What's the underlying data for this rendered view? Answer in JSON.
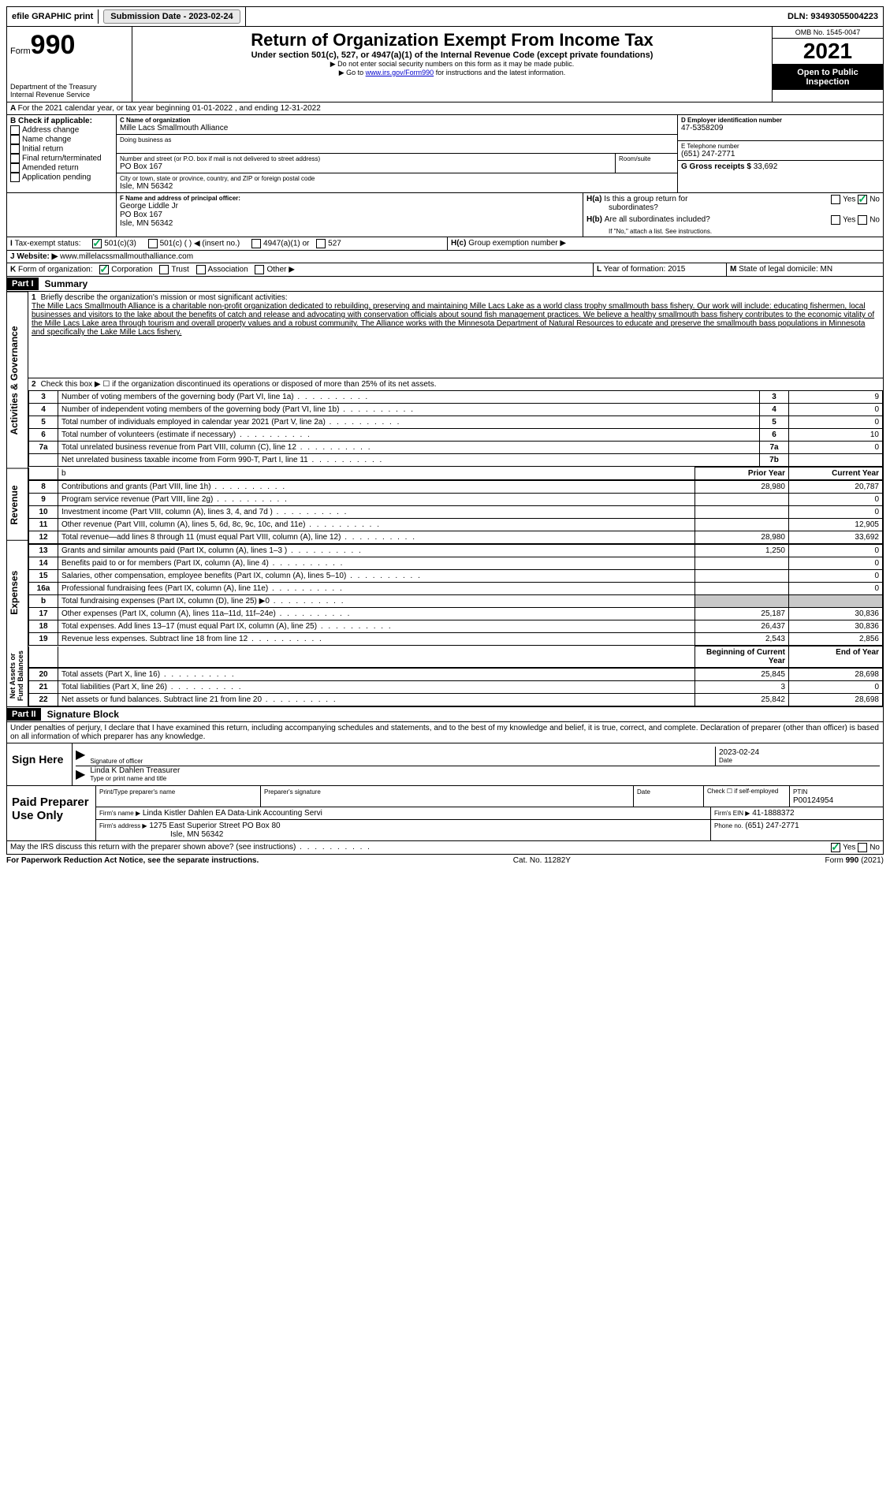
{
  "topbar": {
    "efile": "efile GRAPHIC print",
    "submission_label": "Submission Date - 2023-02-24",
    "dln": "DLN: 93493055004223"
  },
  "header": {
    "form_word": "Form",
    "form_num": "990",
    "dept": "Department of the Treasury",
    "irs": "Internal Revenue Service",
    "title": "Return of Organization Exempt From Income Tax",
    "sub1": "Under section 501(c), 527, or 4947(a)(1) of the Internal Revenue Code (except private foundations)",
    "sub2": "▶ Do not enter social security numbers on this form as it may be made public.",
    "sub3_pre": "▶ Go to ",
    "sub3_link": "www.irs.gov/Form990",
    "sub3_post": " for instructions and the latest information.",
    "omb": "OMB No. 1545-0047",
    "year": "2021",
    "inspection": "Open to Public Inspection"
  },
  "A": {
    "line": "For the 2021 calendar year, or tax year beginning 01-01-2022   , and ending 12-31-2022"
  },
  "B": {
    "label": "Check if applicable:",
    "opts": [
      "Address change",
      "Name change",
      "Initial return",
      "Final return/terminated",
      "Amended return",
      "Application pending"
    ]
  },
  "C": {
    "name_label": "C Name of organization",
    "name": "Mille Lacs Smallmouth Alliance",
    "dba_label": "Doing business as",
    "addr_label": "Number and street (or P.O. box if mail is not delivered to street address)",
    "room_label": "Room/suite",
    "addr": "PO Box 167",
    "city_label": "City or town, state or province, country, and ZIP or foreign postal code",
    "city": "Isle, MN  56342"
  },
  "D": {
    "label": "D Employer identification number",
    "val": "47-5358209"
  },
  "E": {
    "label": "E Telephone number",
    "val": "(651) 247-2771"
  },
  "G": {
    "label": "G Gross receipts $",
    "val": "33,692"
  },
  "F": {
    "label": "F  Name and address of principal officer:",
    "l1": "George Liddle Jr",
    "l2": "PO Box 167",
    "l3": "Isle, MN  56342"
  },
  "H": {
    "a": "Is this a group return for",
    "a2": "subordinates?",
    "b": "Are all subordinates included?",
    "b2": "If \"No,\" attach a list. See instructions.",
    "c": "Group exemption number ▶",
    "yes": "Yes",
    "no": "No"
  },
  "I": {
    "label": "Tax-exempt status:",
    "o1": "501(c)(3)",
    "o2": "501(c) (  ) ◀ (insert no.)",
    "o3": "4947(a)(1) or",
    "o4": "527"
  },
  "J": {
    "label": "Website: ▶",
    "val": "www.millelacssmallmouthalliance.com"
  },
  "K": {
    "label": "Form of organization:",
    "o1": "Corporation",
    "o2": "Trust",
    "o3": "Association",
    "o4": "Other ▶"
  },
  "L": {
    "label": "Year of formation:",
    "val": "2015"
  },
  "M": {
    "label": "State of legal domicile:",
    "val": "MN"
  },
  "parts": {
    "p1": "Part I",
    "p1t": "Summary",
    "p2": "Part II",
    "p2t": "Signature Block"
  },
  "section_labels": {
    "ag": "Activities & Governance",
    "rev": "Revenue",
    "exp": "Expenses",
    "na": "Net Assets or Fund Balances"
  },
  "summary": {
    "l1_label": "Briefly describe the organization's mission or most significant activities:",
    "l1_text": "The Mille Lacs Smallmouth Alliance is a charitable non-profit organization dedicated to rebuilding, preserving and maintaining Mille Lacs Lake as a world class trophy smallmouth bass fishery. Our work will include: educating fishermen, local businesses and visitors to the lake about the benefits of catch and release and advocating with conservation officials about sound fish management practices. We believe a healthy smallmouth bass fishery contributes to the economic vitality of the Mille Lacs Lake area through tourism and overall property values and a robust community. The Alliance works with the Minnesota Department of Natural Resources to educate and preserve the smallmouth bass populations in Minnesota and specifically the Lake Mille Lacs fishery.",
    "l2": "Check this box ▶ ☐ if the organization discontinued its operations or disposed of more than 25% of its net assets.",
    "rows_gov": [
      {
        "n": "3",
        "t": "Number of voting members of the governing body (Part VI, line 1a)",
        "k": "3",
        "v": "9"
      },
      {
        "n": "4",
        "t": "Number of independent voting members of the governing body (Part VI, line 1b)",
        "k": "4",
        "v": "0"
      },
      {
        "n": "5",
        "t": "Total number of individuals employed in calendar year 2021 (Part V, line 2a)",
        "k": "5",
        "v": "0"
      },
      {
        "n": "6",
        "t": "Total number of volunteers (estimate if necessary)",
        "k": "6",
        "v": "10"
      },
      {
        "n": "7a",
        "t": "Total unrelated business revenue from Part VIII, column (C), line 12",
        "k": "7a",
        "v": "0"
      },
      {
        "n": "",
        "t": "Net unrelated business taxable income from Form 990-T, Part I, line 11",
        "k": "7b",
        "v": ""
      }
    ],
    "col_hdr_prior": "Prior Year",
    "col_hdr_curr": "Current Year",
    "rows_rev": [
      {
        "n": "8",
        "t": "Contributions and grants (Part VIII, line 1h)",
        "p": "28,980",
        "c": "20,787"
      },
      {
        "n": "9",
        "t": "Program service revenue (Part VIII, line 2g)",
        "p": "",
        "c": "0"
      },
      {
        "n": "10",
        "t": "Investment income (Part VIII, column (A), lines 3, 4, and 7d )",
        "p": "",
        "c": "0"
      },
      {
        "n": "11",
        "t": "Other revenue (Part VIII, column (A), lines 5, 6d, 8c, 9c, 10c, and 11e)",
        "p": "",
        "c": "12,905"
      },
      {
        "n": "12",
        "t": "Total revenue—add lines 8 through 11 (must equal Part VIII, column (A), line 12)",
        "p": "28,980",
        "c": "33,692"
      }
    ],
    "rows_exp": [
      {
        "n": "13",
        "t": "Grants and similar amounts paid (Part IX, column (A), lines 1–3 )",
        "p": "1,250",
        "c": "0"
      },
      {
        "n": "14",
        "t": "Benefits paid to or for members (Part IX, column (A), line 4)",
        "p": "",
        "c": "0"
      },
      {
        "n": "15",
        "t": "Salaries, other compensation, employee benefits (Part IX, column (A), lines 5–10)",
        "p": "",
        "c": "0"
      },
      {
        "n": "16a",
        "t": "Professional fundraising fees (Part IX, column (A), line 11e)",
        "p": "",
        "c": "0"
      },
      {
        "n": "b",
        "t": "Total fundraising expenses (Part IX, column (D), line 25) ▶0",
        "p": "shaded",
        "c": "shaded"
      },
      {
        "n": "17",
        "t": "Other expenses (Part IX, column (A), lines 11a–11d, 11f–24e)",
        "p": "25,187",
        "c": "30,836"
      },
      {
        "n": "18",
        "t": "Total expenses. Add lines 13–17 (must equal Part IX, column (A), line 25)",
        "p": "26,437",
        "c": "30,836"
      },
      {
        "n": "19",
        "t": "Revenue less expenses. Subtract line 18 from line 12",
        "p": "2,543",
        "c": "2,856"
      }
    ],
    "col_hdr_beg": "Beginning of Current Year",
    "col_hdr_end": "End of Year",
    "rows_na": [
      {
        "n": "20",
        "t": "Total assets (Part X, line 16)",
        "p": "25,845",
        "c": "28,698"
      },
      {
        "n": "21",
        "t": "Total liabilities (Part X, line 26)",
        "p": "3",
        "c": "0"
      },
      {
        "n": "22",
        "t": "Net assets or fund balances. Subtract line 21 from line 20",
        "p": "25,842",
        "c": "28,698"
      }
    ]
  },
  "sig": {
    "penalty": "Under penalties of perjury, I declare that I have examined this return, including accompanying schedules and statements, and to the best of my knowledge and belief, it is true, correct, and complete. Declaration of preparer (other than officer) is based on all information of which preparer has any knowledge.",
    "sign_here": "Sign Here",
    "sig_officer": "Signature of officer",
    "date_label": "Date",
    "date": "2023-02-24",
    "name_title": "Linda K Dahlen  Treasurer",
    "type_print": "Type or print name and title",
    "paid": "Paid Preparer Use Only",
    "pt_name_label": "Print/Type preparer's name",
    "prep_sig_label": "Preparer's signature",
    "check_self": "Check ☐ if self-employed",
    "ptin_label": "PTIN",
    "ptin": "P00124954",
    "firm_name_label": "Firm's name    ▶",
    "firm_name": "Linda Kistler Dahlen EA Data-Link Accounting Servi",
    "firm_ein_label": "Firm's EIN ▶",
    "firm_ein": "41-1888372",
    "firm_addr_label": "Firm's address ▶",
    "firm_addr1": "1275 East Superior Street PO Box 80",
    "firm_addr2": "Isle, MN  56342",
    "phone_label": "Phone no.",
    "phone": "(651) 247-2771",
    "discuss": "May the IRS discuss this return with the preparer shown above? (see instructions)"
  },
  "footer": {
    "left": "For Paperwork Reduction Act Notice, see the separate instructions.",
    "mid": "Cat. No. 11282Y",
    "right": "Form 990 (2021)"
  }
}
